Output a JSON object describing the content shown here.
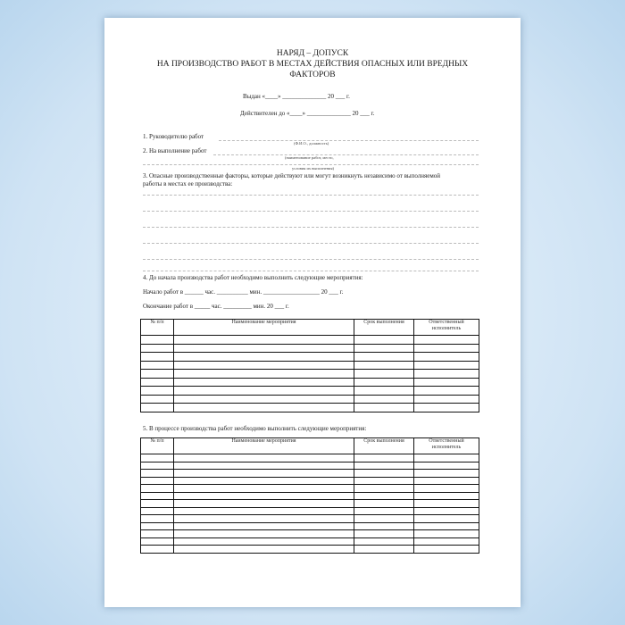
{
  "document": {
    "title_lines": [
      "НАРЯД – ДОПУСК",
      "НА ПРОИЗВОДСТВО РАБОТ  В МЕСТАХ ДЕЙСТВИЯ ОПАСНЫХ ИЛИ ВРЕДНЫХ",
      "ФАКТОРОВ"
    ],
    "issued": "Выдан            «____»  ______________ 20 ___ г.",
    "valid_until": "Действителен до «____»  ______________ 20 ___ г.",
    "item1": "1. Руководителю работ",
    "item1_hint": "(Ф.И.О., должность)",
    "item2": "2. На выполнение работ",
    "item2_hint": "(наименование работ, место,",
    "item2_hint2": "условия их выполнения)",
    "item3_line1": "3. Опасные производственные факторы, которые действуют или могут возникнуть независимо от выполняемой",
    "item3_line2": "работы в местах ее производства:",
    "item4": "4. До начала производства работ необходимо выполнить следующие мероприятия:",
    "start": "Начало работ в ______ час. __________ мин. __________________ 20 ___ г.",
    "end": "Окончание работ в _____ час. _________ мин. 20 ___ г.",
    "item5": "5. В процессе производства работ необходимо выполнить следующие мероприятия:",
    "table_headers": {
      "num": "№ п/п",
      "name": "Наименование мероприятия",
      "term": "Срок выполнения",
      "resp": "Ответственный исполнитель"
    }
  }
}
